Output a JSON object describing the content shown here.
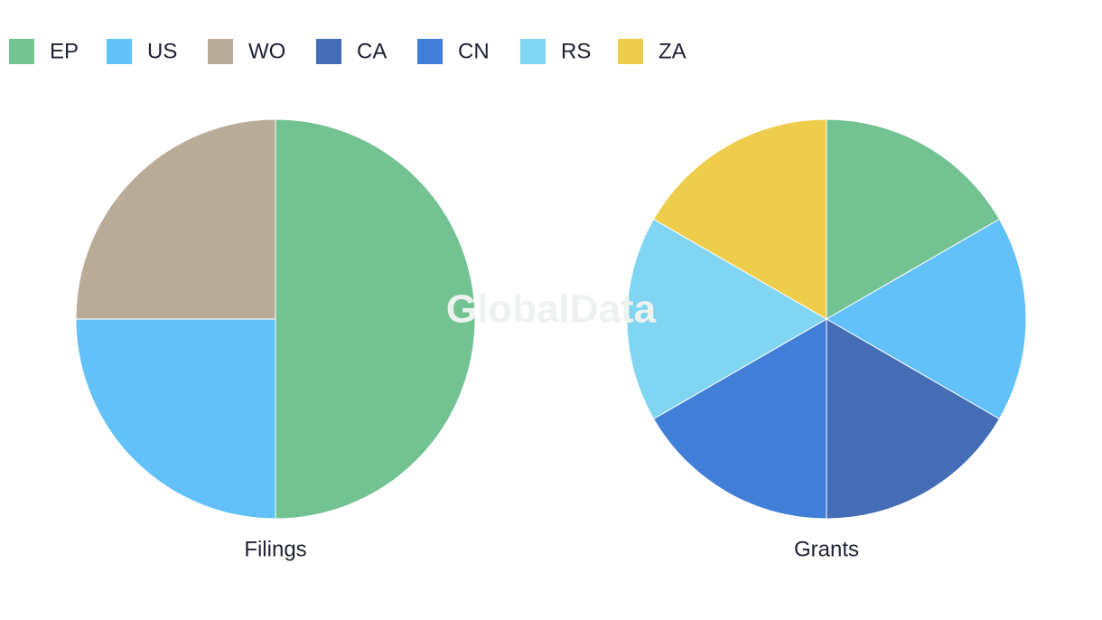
{
  "legend": [
    {
      "name": "EP",
      "color": "#73c292"
    },
    {
      "name": "US",
      "color": "#61c1f8"
    },
    {
      "name": "WO",
      "color": "#b8ab97"
    },
    {
      "name": "CA",
      "color": "#456db6"
    },
    {
      "name": "CN",
      "color": "#417ed7"
    },
    {
      "name": "RS",
      "color": "#80d5f3"
    },
    {
      "name": "ZA",
      "color": "#eecc4c"
    }
  ],
  "watermark": "GlobalData",
  "chart_data": [
    {
      "type": "pie",
      "title": "Filings",
      "categories": [
        "EP",
        "US",
        "WO"
      ],
      "values": [
        50,
        25,
        25
      ]
    },
    {
      "type": "pie",
      "title": "Grants",
      "categories": [
        "EP",
        "US",
        "CA",
        "CN",
        "RS",
        "ZA"
      ],
      "values": [
        16.7,
        16.7,
        16.7,
        16.7,
        16.7,
        16.7
      ]
    }
  ]
}
